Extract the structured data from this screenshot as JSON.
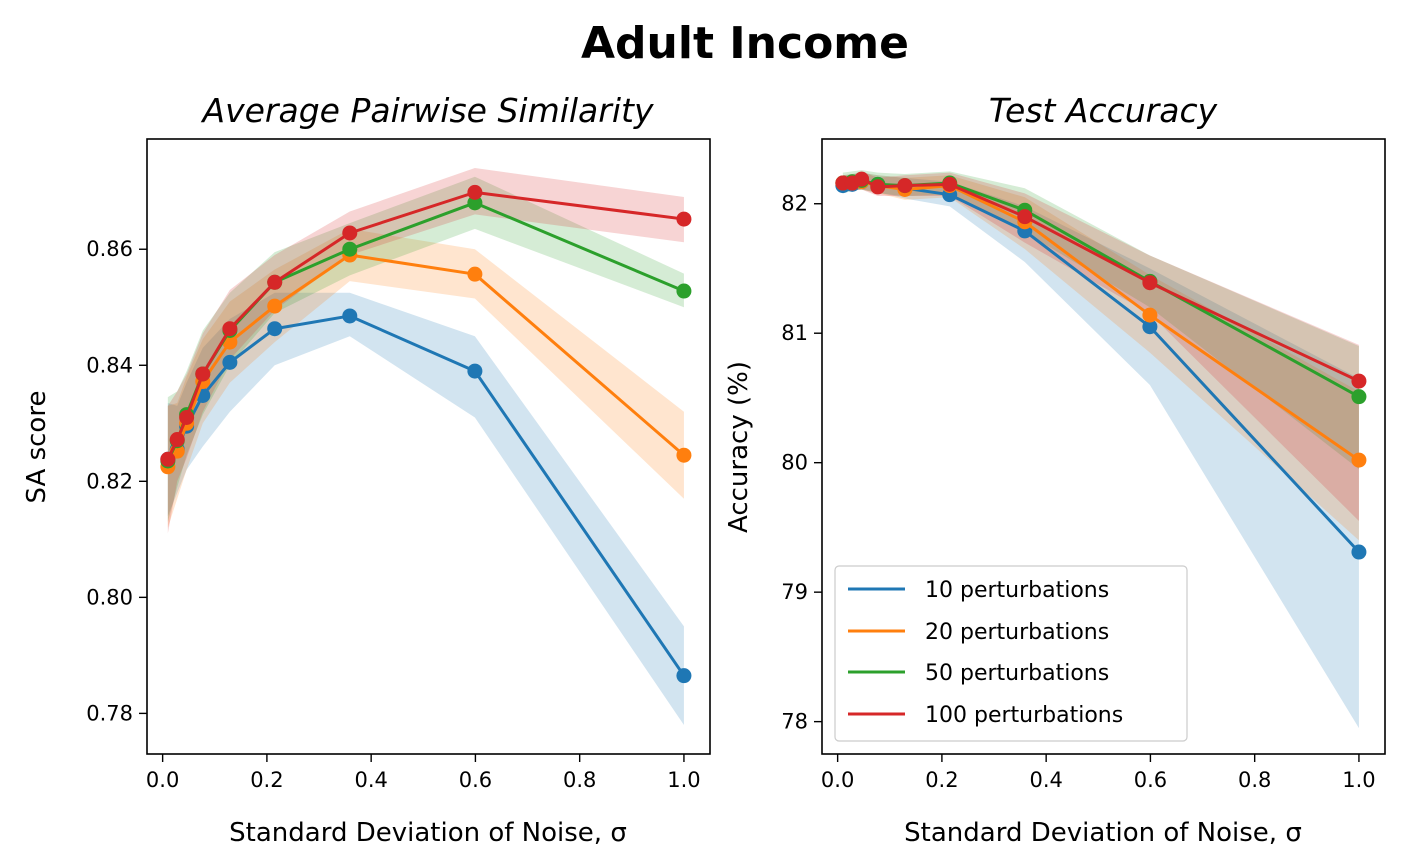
{
  "figure": {
    "title": "Adult Income"
  },
  "legend": {
    "placement": "lower-left",
    "entries": [
      "10 perturbations",
      "20 perturbations",
      "50 perturbations",
      "100 perturbations"
    ]
  },
  "colors": {
    "s10": "#1f77b4",
    "s20": "#ff7f0e",
    "s50": "#2ca02c",
    "s100": "#d62728"
  },
  "chart_data": [
    {
      "type": "line",
      "title": "Average Pairwise Similarity",
      "xlabel": "Standard Deviation of Noise, σ",
      "ylabel": "SA score",
      "xlim": [
        -0.03,
        1.05
      ],
      "ylim": [
        0.773,
        0.879
      ],
      "xticks": [
        "0.0",
        "0.2",
        "0.4",
        "0.6",
        "0.8",
        "1.0"
      ],
      "yticks": [
        "0.78",
        "0.80",
        "0.82",
        "0.84",
        "0.86"
      ],
      "x": [
        0.01,
        0.028,
        0.046,
        0.077,
        0.129,
        0.215,
        0.359,
        0.599,
        1.0
      ],
      "series": [
        {
          "name": "10 perturbations",
          "values": [
            0.8238,
            0.8255,
            0.8295,
            0.8348,
            0.8405,
            0.8463,
            0.8485,
            0.839,
            0.7865
          ],
          "lower": [
            0.814,
            0.818,
            0.822,
            0.826,
            0.832,
            0.84,
            0.845,
            0.831,
            0.778
          ],
          "upper": [
            0.8335,
            0.833,
            0.837,
            0.843,
            0.848,
            0.8525,
            0.8525,
            0.845,
            0.795
          ]
        },
        {
          "name": "20 perturbations",
          "values": [
            0.8225,
            0.8252,
            0.83,
            0.8372,
            0.844,
            0.8502,
            0.859,
            0.8557,
            0.8245
          ],
          "lower": [
            0.812,
            0.817,
            0.822,
            0.83,
            0.837,
            0.844,
            0.8545,
            0.8515,
            0.817
          ],
          "upper": [
            0.833,
            0.8335,
            0.838,
            0.8445,
            0.851,
            0.8565,
            0.8635,
            0.86,
            0.832
          ]
        },
        {
          "name": "50 perturbations",
          "values": [
            0.8235,
            0.827,
            0.8315,
            0.8385,
            0.846,
            0.8543,
            0.86,
            0.868,
            0.8528
          ],
          "lower": [
            0.813,
            0.819,
            0.8245,
            0.8315,
            0.84,
            0.849,
            0.8555,
            0.8635,
            0.85
          ],
          "upper": [
            0.8345,
            0.8355,
            0.839,
            0.846,
            0.8525,
            0.8595,
            0.8645,
            0.8725,
            0.8558
          ]
        },
        {
          "name": "100 perturbations",
          "values": [
            0.8238,
            0.8272,
            0.831,
            0.8385,
            0.8463,
            0.8543,
            0.8628,
            0.8698,
            0.8652
          ],
          "lower": [
            0.811,
            0.82,
            0.824,
            0.832,
            0.841,
            0.8495,
            0.859,
            0.866,
            0.8612
          ],
          "upper": [
            0.833,
            0.8355,
            0.8385,
            0.8455,
            0.853,
            0.859,
            0.8665,
            0.874,
            0.869
          ]
        }
      ]
    },
    {
      "type": "line",
      "title": "Test Accuracy",
      "xlabel": "Standard Deviation of Noise, σ",
      "ylabel": "Accuracy (%)",
      "xlim": [
        -0.03,
        1.05
      ],
      "ylim": [
        77.75,
        82.5
      ],
      "xticks": [
        "0.0",
        "0.2",
        "0.4",
        "0.6",
        "0.8",
        "1.0"
      ],
      "yticks": [
        "78",
        "79",
        "80",
        "81",
        "82"
      ],
      "x": [
        0.01,
        0.028,
        0.046,
        0.077,
        0.129,
        0.215,
        0.359,
        0.599,
        1.0
      ],
      "series": [
        {
          "name": "10 perturbations",
          "values": [
            82.14,
            82.15,
            82.17,
            82.15,
            82.12,
            82.07,
            81.79,
            81.05,
            79.31
          ],
          "lower": [
            82.08,
            82.1,
            82.11,
            82.09,
            82.04,
            81.98,
            81.55,
            80.6,
            77.95
          ],
          "upper": [
            82.22,
            82.23,
            82.24,
            82.22,
            82.2,
            82.17,
            81.98,
            81.5,
            80.65
          ]
        },
        {
          "name": "20 perturbations",
          "values": [
            82.16,
            82.16,
            82.17,
            82.14,
            82.11,
            82.14,
            81.86,
            81.14,
            80.02
          ],
          "lower": [
            82.1,
            82.1,
            82.11,
            82.08,
            82.03,
            82.05,
            81.65,
            80.85,
            79.4
          ],
          "upper": [
            82.22,
            82.23,
            82.24,
            82.22,
            82.2,
            82.22,
            82.05,
            81.45,
            80.55
          ]
        },
        {
          "name": "50 perturbations",
          "values": [
            82.16,
            82.17,
            82.18,
            82.15,
            82.14,
            82.16,
            81.95,
            81.4,
            80.51
          ],
          "lower": [
            82.08,
            82.1,
            82.11,
            82.08,
            82.06,
            82.07,
            81.78,
            81.2,
            79.95
          ],
          "upper": [
            82.24,
            82.25,
            82.26,
            82.24,
            82.23,
            82.25,
            82.12,
            81.6,
            80.9
          ]
        },
        {
          "name": "100 perturbations",
          "values": [
            82.16,
            82.16,
            82.19,
            82.13,
            82.14,
            82.15,
            81.9,
            81.39,
            80.63
          ],
          "lower": [
            82.1,
            82.1,
            82.11,
            82.06,
            82.06,
            82.06,
            81.7,
            81.15,
            79.55
          ],
          "upper": [
            82.22,
            82.22,
            82.25,
            82.2,
            82.22,
            82.24,
            82.08,
            81.6,
            80.91
          ]
        }
      ]
    }
  ]
}
